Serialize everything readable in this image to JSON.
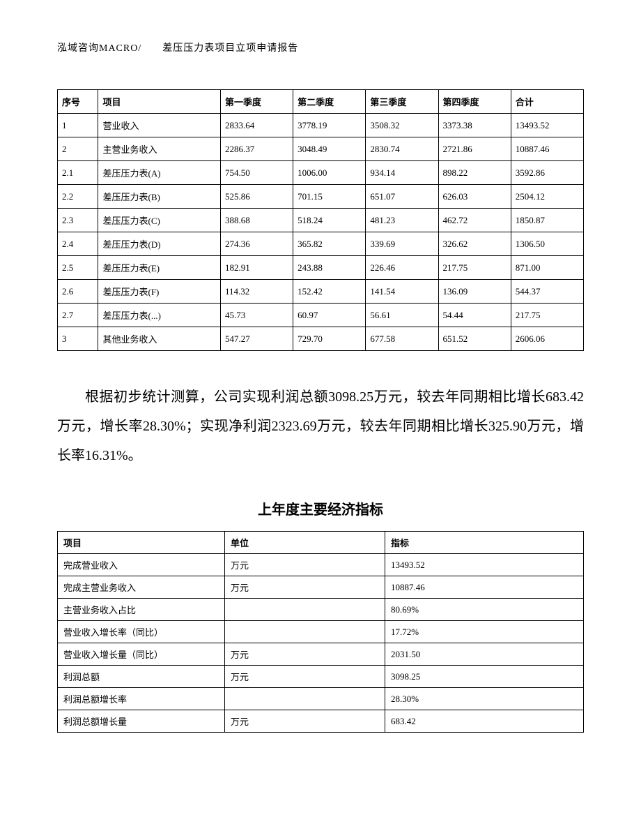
{
  "header": "泓域咨询MACRO/　　差压压力表项目立项申请报告",
  "table1": {
    "columns": [
      "序号",
      "项目",
      "第一季度",
      "第二季度",
      "第三季度",
      "第四季度",
      "合计"
    ],
    "rows": [
      [
        "1",
        "营业收入",
        "2833.64",
        "3778.19",
        "3508.32",
        "3373.38",
        "13493.52"
      ],
      [
        "2",
        "主营业务收入",
        "2286.37",
        "3048.49",
        "2830.74",
        "2721.86",
        "10887.46"
      ],
      [
        "2.1",
        "差压压力表(A)",
        "754.50",
        "1006.00",
        "934.14",
        "898.22",
        "3592.86"
      ],
      [
        "2.2",
        "差压压力表(B)",
        "525.86",
        "701.15",
        "651.07",
        "626.03",
        "2504.12"
      ],
      [
        "2.3",
        "差压压力表(C)",
        "388.68",
        "518.24",
        "481.23",
        "462.72",
        "1850.87"
      ],
      [
        "2.4",
        "差压压力表(D)",
        "274.36",
        "365.82",
        "339.69",
        "326.62",
        "1306.50"
      ],
      [
        "2.5",
        "差压压力表(E)",
        "182.91",
        "243.88",
        "226.46",
        "217.75",
        "871.00"
      ],
      [
        "2.6",
        "差压压力表(F)",
        "114.32",
        "152.42",
        "141.54",
        "136.09",
        "544.37"
      ],
      [
        "2.7",
        "差压压力表(...)",
        "45.73",
        "60.97",
        "56.61",
        "54.44",
        "217.75"
      ],
      [
        "3",
        "其他业务收入",
        "547.27",
        "729.70",
        "677.58",
        "651.52",
        "2606.06"
      ]
    ]
  },
  "paragraph": "根据初步统计测算，公司实现利润总额3098.25万元，较去年同期相比增长683.42万元，增长率28.30%；实现净利润2323.69万元，较去年同期相比增长325.90万元，增长率16.31%。",
  "section_title": "上年度主要经济指标",
  "table2": {
    "columns": [
      "项目",
      "单位",
      "指标"
    ],
    "rows": [
      [
        "完成营业收入",
        "万元",
        "13493.52"
      ],
      [
        "完成主营业务收入",
        "万元",
        "10887.46"
      ],
      [
        "主营业务收入占比",
        "",
        "80.69%"
      ],
      [
        "营业收入增长率（同比）",
        "",
        "17.72%"
      ],
      [
        "营业收入增长量（同比）",
        "万元",
        "2031.50"
      ],
      [
        "利润总额",
        "万元",
        "3098.25"
      ],
      [
        "利润总额增长率",
        "",
        "28.30%"
      ],
      [
        "利润总额增长量",
        "万元",
        "683.42"
      ]
    ]
  }
}
